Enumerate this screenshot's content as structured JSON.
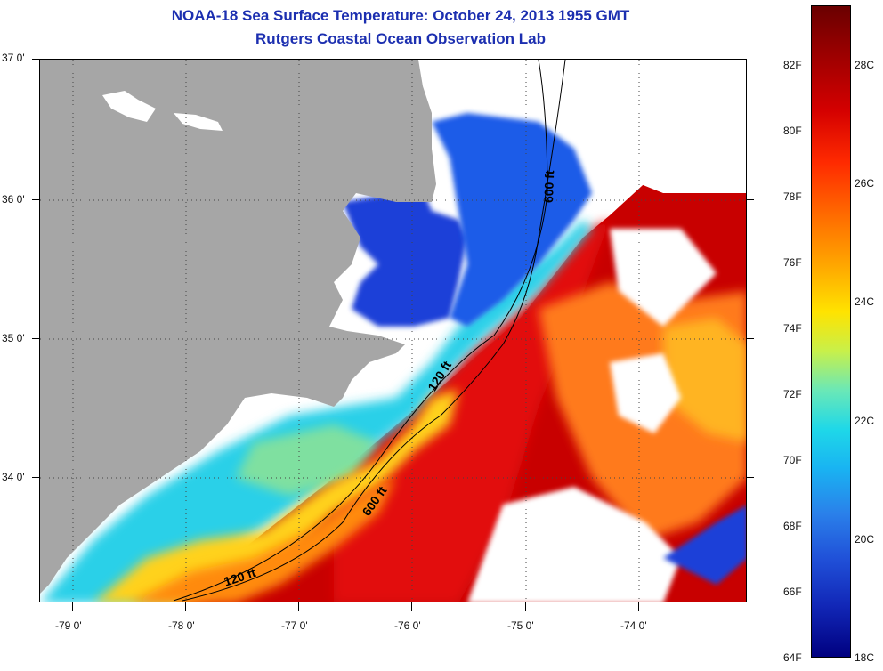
{
  "title_line1": "NOAA-18 Sea Surface Temperature:  October 24, 2013 1955 GMT",
  "title_line2": "Rutgers Coastal Ocean Observation Lab",
  "lat_labels": [
    "37 0'",
    "36 0'",
    "35 0'",
    "34 0'"
  ],
  "lon_labels": [
    "-79 0'",
    "-78 0'",
    "-77 0'",
    "-76 0'",
    "-75 0'",
    "-74 0'"
  ],
  "isobaths": [
    "600 ft",
    "120 ft",
    "600 ft",
    "120 ft"
  ],
  "colorbar": {
    "fahrenheit": [
      "82F",
      "80F",
      "78F",
      "76F",
      "74F",
      "72F",
      "70F",
      "68F",
      "66F",
      "64F"
    ],
    "celsius": [
      "28C",
      "26C",
      "24C",
      "22C",
      "20C",
      "18C"
    ]
  },
  "colors": {
    "title": "#1c2fb0",
    "land": "#a6a6a6",
    "hot": "#c80000",
    "warm": "#ff8c00",
    "mid": "#ffe300",
    "cool": "#1fd8e8",
    "cold": "#1a3fd8"
  }
}
